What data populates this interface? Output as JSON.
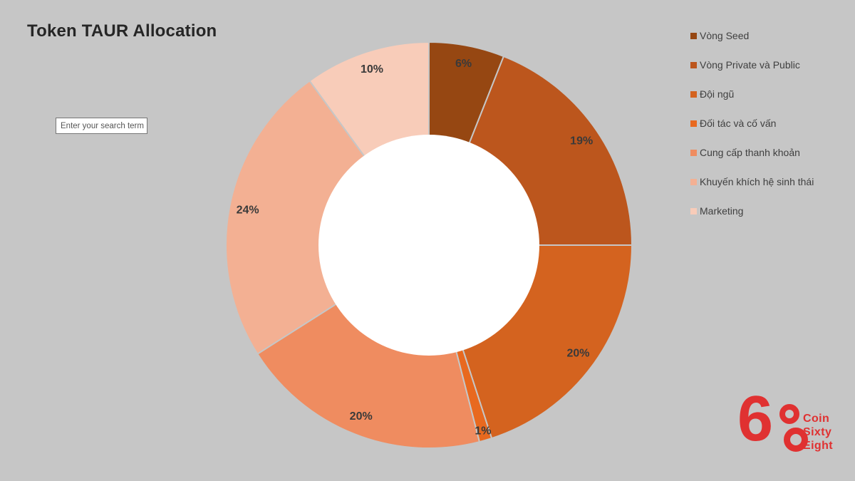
{
  "page": {
    "background_color": "#C6C6C6"
  },
  "search": {
    "placeholder": "Enter your search term"
  },
  "chart_data": {
    "type": "pie",
    "subtype": "donut",
    "title": "Token TAUR Allocation",
    "categories": [
      "Vòng Seed",
      "Vòng Private và Public",
      "Đội ngũ",
      "Đối tác và cố vấn",
      "Cung cấp thanh khoản",
      "Khuyến khích hệ sinh thái",
      "Marketing"
    ],
    "values": [
      6,
      19,
      20,
      1,
      20,
      24,
      10
    ],
    "labels": [
      "6%",
      "19%",
      "20%",
      "1%",
      "20%",
      "24%",
      "10%"
    ],
    "colors": [
      "#964712",
      "#BC561D",
      "#D4631F",
      "#E8691F",
      "#EF8C60",
      "#F3B093",
      "#F8CCB9"
    ],
    "start_angle_deg": 0,
    "direction": "clockwise",
    "hole_color": "#FFFFFF",
    "separator_color": "#C6C6C6",
    "label_color": "#3A3A3A",
    "legend_position": "right"
  },
  "logo": {
    "six": "6",
    "lines": [
      "Coin",
      "Sixty",
      "Eight"
    ],
    "color": "#E03131"
  }
}
